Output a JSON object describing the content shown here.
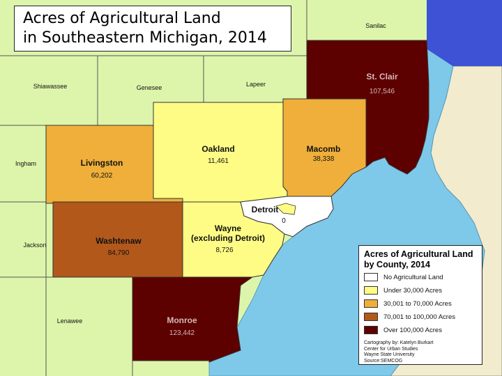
{
  "title": {
    "line1": "Acres of Agricultural Land",
    "line2": "in Southeastern Michigan, 2014"
  },
  "colors": {
    "none": "#ffffff",
    "under_30k": "#fefc84",
    "30k_70k": "#efaf3a",
    "70k_100k": "#b2581b",
    "over_100k": "#5d0000",
    "surrounding": "#ddf5ab",
    "water": "#7ec8ea",
    "canada": "#f2ebcd"
  },
  "counties": {
    "sanilac": {
      "name": "Sanilac"
    },
    "shiawassee": {
      "name": "Shiawassee"
    },
    "genesee": {
      "name": "Genesee"
    },
    "lapeer": {
      "name": "Lapeer"
    },
    "ingham": {
      "name": "Ingham"
    },
    "jackson": {
      "name": "Jackson"
    },
    "lenawee": {
      "name": "Lenawee"
    },
    "st_clair": {
      "name": "St. Clair",
      "acres": "107,546",
      "category": "over_100k"
    },
    "oakland": {
      "name": "Oakland",
      "acres": "11,461",
      "category": "under_30k"
    },
    "macomb": {
      "name": "Macomb",
      "acres": "38,338",
      "category": "30k_70k"
    },
    "livingston": {
      "name": "Livingston",
      "acres": "60,202",
      "category": "30k_70k"
    },
    "washtenaw": {
      "name": "Washtenaw",
      "acres": "84,790",
      "category": "70k_100k"
    },
    "wayne": {
      "name_line1": "Wayne",
      "name_line2": "(excluding Detroit)",
      "acres": "8,726",
      "category": "under_30k"
    },
    "detroit": {
      "name": "Detroit",
      "acres": "0",
      "category": "none"
    },
    "monroe": {
      "name": "Monroe",
      "acres": "123,442",
      "category": "over_100k"
    }
  },
  "legend": {
    "title_line1": "Acres of Agricultural Land",
    "title_line2": "by County, 2014",
    "items": [
      {
        "label": "No Agricultural Land",
        "color": "#ffffff"
      },
      {
        "label": "Under 30,000 Acres",
        "color": "#fefc84"
      },
      {
        "label": "30,001 to 70,000 Acres",
        "color": "#efaf3a"
      },
      {
        "label": "70,001 to 100,000 Acres",
        "color": "#b2581b"
      },
      {
        "label": "Over 100,000 Acres",
        "color": "#5d0000"
      }
    ],
    "credits": [
      "Cartography by: Katelyn Burkart",
      "Center for Urban Studies",
      "Wayne State University",
      "Source:SEMCOG"
    ]
  }
}
